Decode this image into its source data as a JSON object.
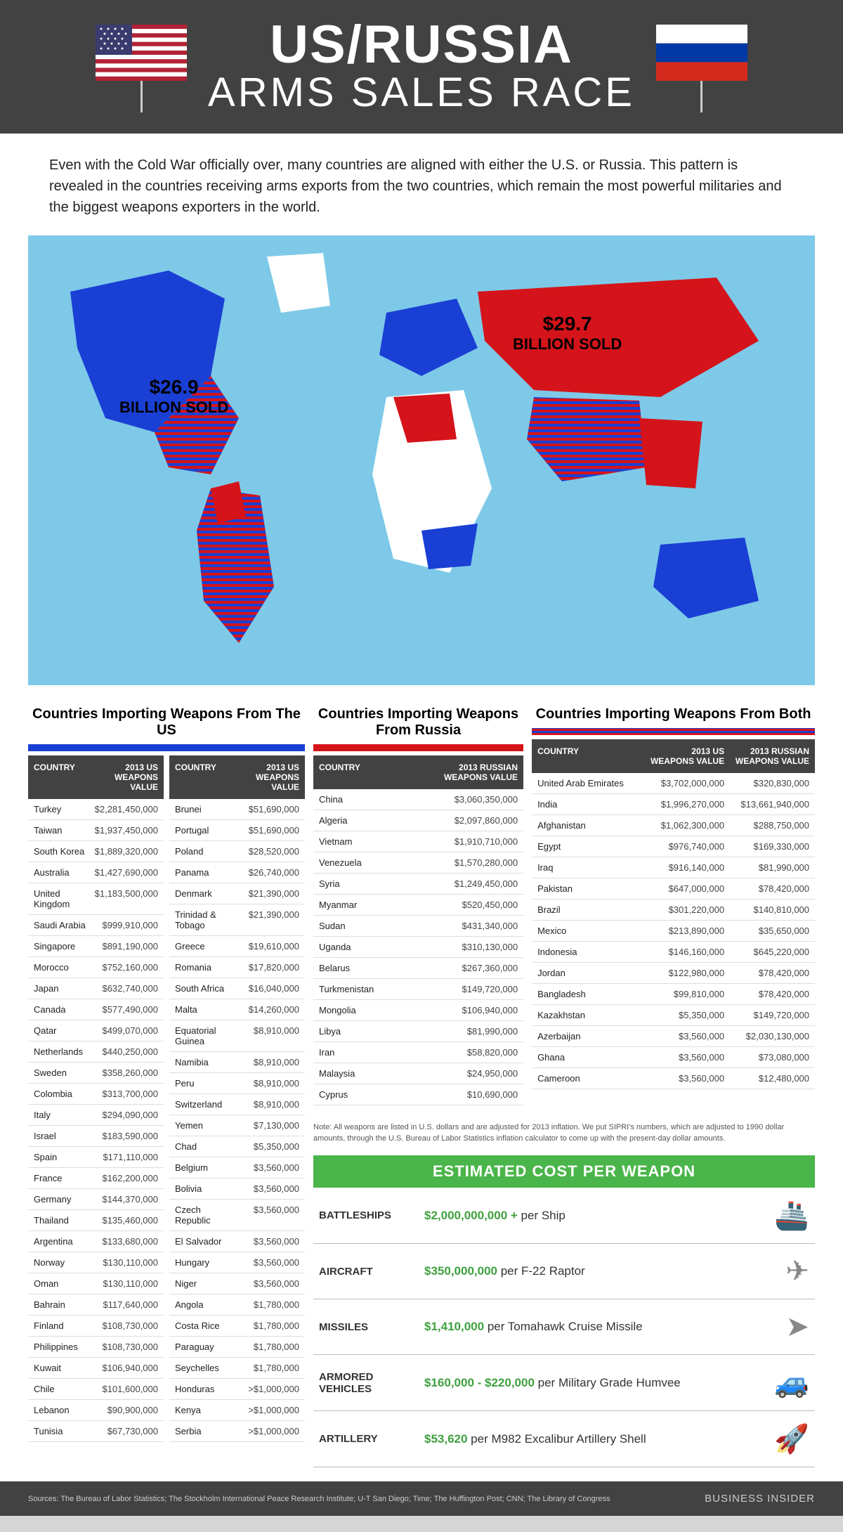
{
  "header": {
    "title_main": "US/RUSSIA",
    "title_sub": "ARMS SALES RACE"
  },
  "intro": "Even with the Cold War officially over, many countries are aligned with either the U.S. or Russia. This pattern is revealed in the countries receiving arms exports from the two countries, which remain the most powerful militaries and the biggest weapons exporters in the world.",
  "map": {
    "water_color": "#7ec9e8",
    "us_color": "#1a3fd4",
    "ru_color": "#d4141a",
    "us_label_amount": "$26.9",
    "us_label_text": "BILLION SOLD",
    "ru_label_amount": "$29.7",
    "ru_label_text": "BILLION SOLD"
  },
  "tables": {
    "us": {
      "title": "Countries Importing Weapons From The US",
      "header_country": "COUNTRY",
      "header_value": "2013 US\nWEAPONS VALUE",
      "left": [
        {
          "c": "Turkey",
          "v": "$2,281,450,000"
        },
        {
          "c": "Taiwan",
          "v": "$1,937,450,000"
        },
        {
          "c": "South Korea",
          "v": "$1,889,320,000"
        },
        {
          "c": "Australia",
          "v": "$1,427,690,000"
        },
        {
          "c": "United Kingdom",
          "v": "$1,183,500,000"
        },
        {
          "c": "Saudi Arabia",
          "v": "$999,910,000"
        },
        {
          "c": "Singapore",
          "v": "$891,190,000"
        },
        {
          "c": "Morocco",
          "v": "$752,160,000"
        },
        {
          "c": "Japan",
          "v": "$632,740,000"
        },
        {
          "c": "Canada",
          "v": "$577,490,000"
        },
        {
          "c": "Qatar",
          "v": "$499,070,000"
        },
        {
          "c": "Netherlands",
          "v": "$440,250,000"
        },
        {
          "c": "Sweden",
          "v": "$358,260,000"
        },
        {
          "c": "Colombia",
          "v": "$313,700,000"
        },
        {
          "c": "Italy",
          "v": "$294,090,000"
        },
        {
          "c": "Israel",
          "v": "$183,590,000"
        },
        {
          "c": "Spain",
          "v": "$171,110,000"
        },
        {
          "c": "France",
          "v": "$162,200,000"
        },
        {
          "c": "Germany",
          "v": "$144,370,000"
        },
        {
          "c": "Thailand",
          "v": "$135,460,000"
        },
        {
          "c": "Argentina",
          "v": "$133,680,000"
        },
        {
          "c": "Norway",
          "v": "$130,110,000"
        },
        {
          "c": "Oman",
          "v": "$130,110,000"
        },
        {
          "c": "Bahrain",
          "v": "$117,640,000"
        },
        {
          "c": "Finland",
          "v": "$108,730,000"
        },
        {
          "c": "Philippines",
          "v": "$108,730,000"
        },
        {
          "c": "Kuwait",
          "v": "$106,940,000"
        },
        {
          "c": "Chile",
          "v": "$101,600,000"
        },
        {
          "c": "Lebanon",
          "v": "$90,900,000"
        },
        {
          "c": "Tunisia",
          "v": "$67,730,000"
        }
      ],
      "right": [
        {
          "c": "Brunei",
          "v": "$51,690,000"
        },
        {
          "c": "Portugal",
          "v": "$51,690,000"
        },
        {
          "c": "Poland",
          "v": "$28,520,000"
        },
        {
          "c": "Panama",
          "v": "$26,740,000"
        },
        {
          "c": "Denmark",
          "v": "$21,390,000"
        },
        {
          "c": "Trinidad & Tobago",
          "v": "$21,390,000"
        },
        {
          "c": "Greece",
          "v": "$19,610,000"
        },
        {
          "c": "Romania",
          "v": "$17,820,000"
        },
        {
          "c": "South Africa",
          "v": "$16,040,000"
        },
        {
          "c": "Malta",
          "v": "$14,260,000"
        },
        {
          "c": "Equatorial Guinea",
          "v": "$8,910,000"
        },
        {
          "c": "Namibia",
          "v": "$8,910,000"
        },
        {
          "c": "Peru",
          "v": "$8,910,000"
        },
        {
          "c": "Switzerland",
          "v": "$8,910,000"
        },
        {
          "c": "Yemen",
          "v": "$7,130,000"
        },
        {
          "c": "Chad",
          "v": "$5,350,000"
        },
        {
          "c": "Belgium",
          "v": "$3,560,000"
        },
        {
          "c": "Bolivia",
          "v": "$3,560,000"
        },
        {
          "c": "Czech Republic",
          "v": "$3,560,000"
        },
        {
          "c": "El Salvador",
          "v": "$3,560,000"
        },
        {
          "c": "Hungary",
          "v": "$3,560,000"
        },
        {
          "c": "Niger",
          "v": "$3,560,000"
        },
        {
          "c": "Angola",
          "v": "$1,780,000"
        },
        {
          "c": "Costa Rice",
          "v": "$1,780,000"
        },
        {
          "c": "Paraguay",
          "v": "$1,780,000"
        },
        {
          "c": "Seychelles",
          "v": "$1,780,000"
        },
        {
          "c": "Honduras",
          "v": ">$1,000,000"
        },
        {
          "c": "Kenya",
          "v": ">$1,000,000"
        },
        {
          "c": "Serbia",
          "v": ">$1,000,000"
        }
      ]
    },
    "ru": {
      "title": "Countries Importing Weapons From Russia",
      "header_country": "COUNTRY",
      "header_value": "2013 RUSSIAN\nWEAPONS VALUE",
      "rows": [
        {
          "c": "China",
          "v": "$3,060,350,000"
        },
        {
          "c": "Algeria",
          "v": "$2,097,860,000"
        },
        {
          "c": "Vietnam",
          "v": "$1,910,710,000"
        },
        {
          "c": "Venezuela",
          "v": "$1,570,280,000"
        },
        {
          "c": "Syria",
          "v": "$1,249,450,000"
        },
        {
          "c": "Myanmar",
          "v": "$520,450,000"
        },
        {
          "c": "Sudan",
          "v": "$431,340,000"
        },
        {
          "c": "Uganda",
          "v": "$310,130,000"
        },
        {
          "c": "Belarus",
          "v": "$267,360,000"
        },
        {
          "c": "Turkmenistan",
          "v": "$149,720,000"
        },
        {
          "c": "Mongolia",
          "v": "$106,940,000"
        },
        {
          "c": "Libya",
          "v": "$81,990,000"
        },
        {
          "c": "Iran",
          "v": "$58,820,000"
        },
        {
          "c": "Malaysia",
          "v": "$24,950,000"
        },
        {
          "c": "Cyprus",
          "v": "$10,690,000"
        }
      ]
    },
    "both": {
      "title": "Countries Importing Weapons From Both",
      "header_country": "COUNTRY",
      "header_us": "2013 US\nWEAPONS VALUE",
      "header_ru": "2013 RUSSIAN\nWEAPONS VALUE",
      "rows": [
        {
          "c": "United Arab Emirates",
          "u": "$3,702,000,000",
          "r": "$320,830,000"
        },
        {
          "c": "India",
          "u": "$1,996,270,000",
          "r": "$13,661,940,000"
        },
        {
          "c": "Afghanistan",
          "u": "$1,062,300,000",
          "r": "$288,750,000"
        },
        {
          "c": "Egypt",
          "u": "$976,740,000",
          "r": "$169,330,000"
        },
        {
          "c": "Iraq",
          "u": "$916,140,000",
          "r": "$81,990,000"
        },
        {
          "c": "Pakistan",
          "u": "$647,000,000",
          "r": "$78,420,000"
        },
        {
          "c": "Brazil",
          "u": "$301,220,000",
          "r": "$140,810,000"
        },
        {
          "c": "Mexico",
          "u": "$213,890,000",
          "r": "$35,650,000"
        },
        {
          "c": "Indonesia",
          "u": "$146,160,000",
          "r": "$645,220,000"
        },
        {
          "c": "Jordan",
          "u": "$122,980,000",
          "r": "$78,420,000"
        },
        {
          "c": "Bangladesh",
          "u": "$99,810,000",
          "r": "$78,420,000"
        },
        {
          "c": "Kazakhstan",
          "u": "$5,350,000",
          "r": "$149,720,000"
        },
        {
          "c": "Azerbaijan",
          "u": "$3,560,000",
          "r": "$2,030,130,000"
        },
        {
          "c": "Ghana",
          "u": "$3,560,000",
          "r": "$73,080,000"
        },
        {
          "c": "Cameroon",
          "u": "$3,560,000",
          "r": "$12,480,000"
        }
      ]
    }
  },
  "note": "Note: All weapons are listed in U.S. dollars and are adjusted for 2013 inflation. We put SIPRI's numbers, which are adjusted to 1990 dollar amounts, through the U.S. Bureau of Labor Statistics inflation calculator to come up with the present-day dollar amounts.",
  "cost": {
    "title": "ESTIMATED COST PER WEAPON",
    "green": "#4ab54a",
    "rows": [
      {
        "cat": "BATTLESHIPS",
        "price": "$2,000,000,000 +",
        "unit": "per Ship",
        "icon": "🚢"
      },
      {
        "cat": "AIRCRAFT",
        "price": "$350,000,000",
        "unit": "per F-22 Raptor",
        "icon": "✈"
      },
      {
        "cat": "MISSILES",
        "price": "$1,410,000",
        "unit": "per Tomahawk Cruise Missile",
        "icon": "➤"
      },
      {
        "cat": "ARMORED VEHICLES",
        "price": "$160,000 - $220,000",
        "unit": "per Military Grade Humvee",
        "icon": "🚙"
      },
      {
        "cat": "ARTILLERY",
        "price": "$53,620",
        "unit": "per M982 Excalibur Artillery Shell",
        "icon": "🚀"
      }
    ]
  },
  "footer": {
    "sources": "Sources:  The Bureau of Labor Statistics;  The Stockholm International Peace Research Institute;  U-T San Diego;  Time;  The Huffington Post; CNN;  The Library of Congress",
    "logo": "BUSINESS INSIDER"
  }
}
